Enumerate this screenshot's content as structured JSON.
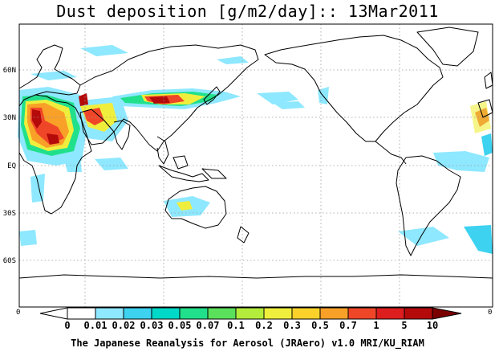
{
  "title": "Dust deposition [g/m2/day]:: 13Mar2011",
  "latitude_labels": [
    "60N",
    "30N",
    "EQ",
    "30S",
    "60S"
  ],
  "colorbar": {
    "labels": [
      "0",
      "0.01",
      "0.02",
      "0.03",
      "0.05",
      "0.07",
      "0.1",
      "0.2",
      "0.3",
      "0.5",
      "0.7",
      "1",
      "5",
      "10"
    ],
    "colors": [
      "#ffffff",
      "#8ee8ff",
      "#3cd2f0",
      "#00d8c8",
      "#20e08c",
      "#5ae05a",
      "#b4ec3c",
      "#f0ee3c",
      "#fad22a",
      "#f8a028",
      "#f04628",
      "#dc1e1e",
      "#b40a0a",
      "#7a0000"
    ],
    "left_end_label": "0",
    "right_end_label": "0"
  },
  "credit": "The Japanese Reanalysis for Aerosol (JRAero) v1.0 MRI/KU_RIAM"
}
